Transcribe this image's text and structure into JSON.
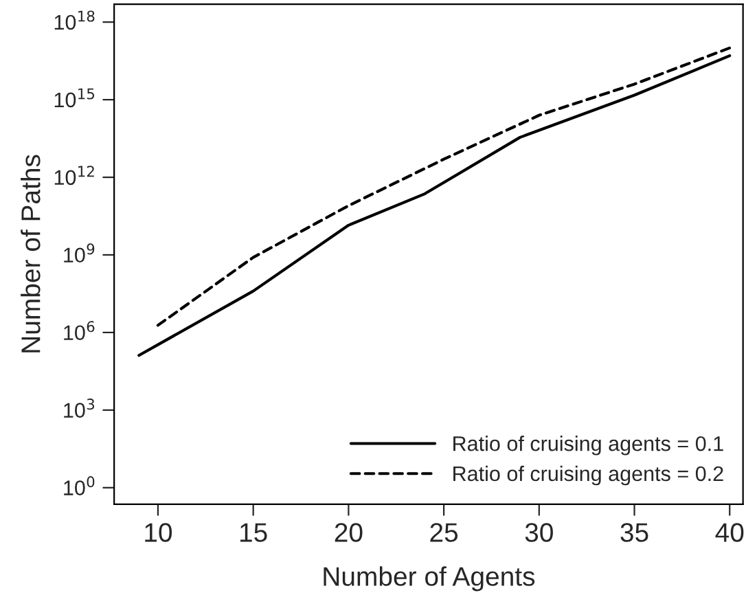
{
  "chart_data": {
    "type": "line",
    "xlabel": "Number of Agents",
    "ylabel": "Number of Paths",
    "log": "y",
    "xlim": [
      7.7,
      40.7
    ],
    "xticks": [
      10,
      15,
      20,
      25,
      30,
      35,
      40
    ],
    "ylim": [
      0.23,
      4.9e+18
    ],
    "yticks": [
      {
        "value": 1,
        "label": "10$^{0}$"
      },
      {
        "value": 1000.0,
        "label": "10$^{3}$"
      },
      {
        "value": 1000000.0,
        "label": "10$^{6}$"
      },
      {
        "value": 1000000000.0,
        "label": "10$^{9}$"
      },
      {
        "value": 1000000000000.0,
        "label": "10$^{12}$"
      },
      {
        "value": 1000000000000000.0,
        "label": "10$^{15}$"
      },
      {
        "value": 1e+18,
        "label": "10$^{18}$"
      }
    ],
    "grid": false,
    "legend": "bottom right",
    "marker": "none",
    "series": [
      {
        "name": "Ratio of cruising agents = 0.1",
        "color": "#000000",
        "line_style": "solid",
        "x": [
          9,
          15,
          20,
          24,
          29,
          35,
          40
        ],
        "values": [
          130000.0,
          40000000.0,
          14000000000.0,
          230000000000.0,
          35000000000000.0,
          1500000000000000.0,
          5e+16
        ]
      },
      {
        "name": "Ratio of cruising agents = 0.2",
        "color": "#000000",
        "line_style": "dashed",
        "x": [
          10,
          15,
          20,
          25,
          30,
          35,
          40
        ],
        "values": [
          1900000.0,
          800000000.0,
          80000000000.0,
          5000000000000.0,
          250000000000000.0,
          4000000000000000.0,
          1e+17
        ]
      }
    ]
  }
}
